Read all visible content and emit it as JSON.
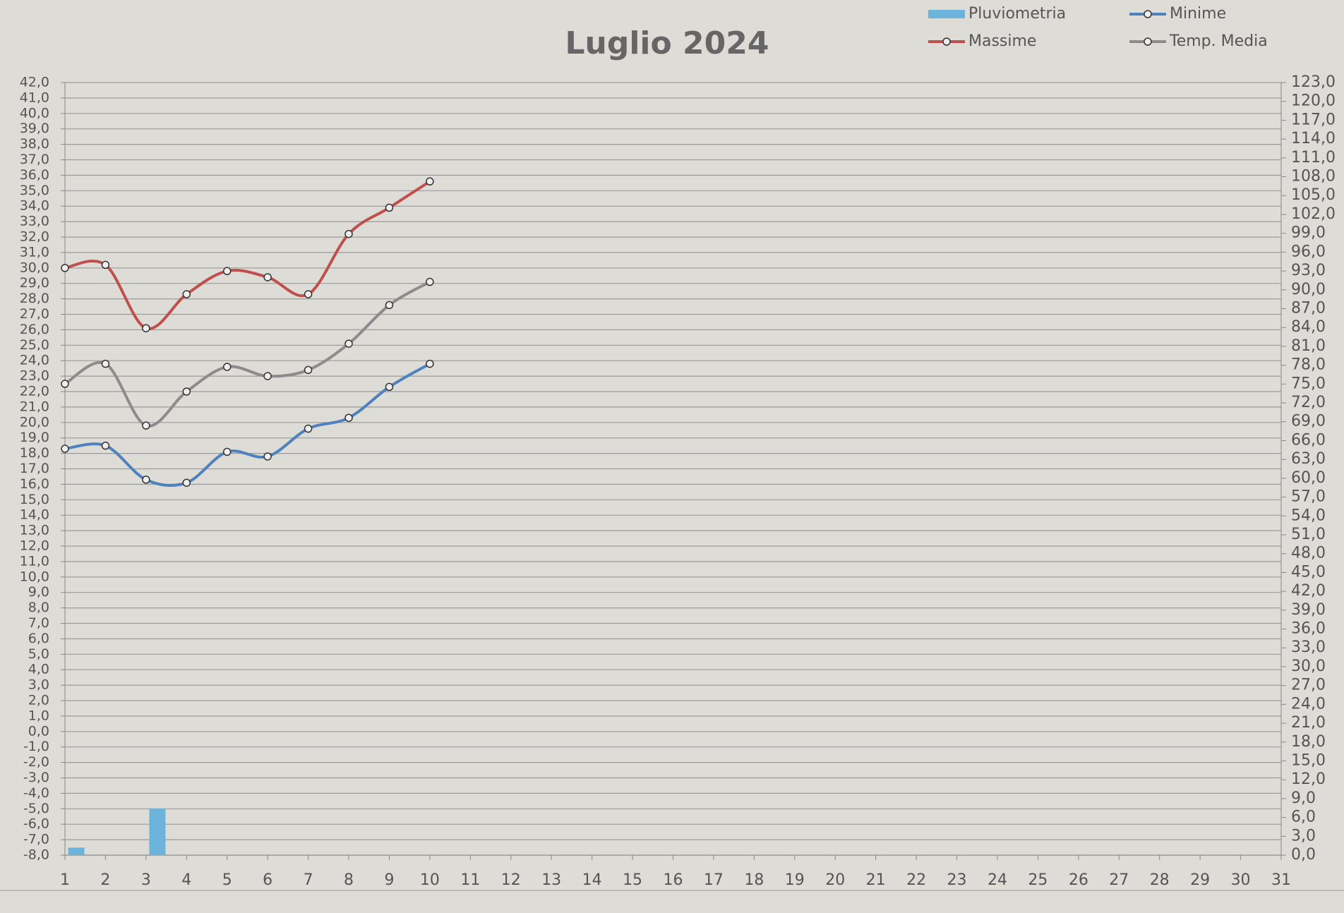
{
  "chart_data": {
    "type": "line",
    "title": "Luglio 2024",
    "categories": [
      1,
      2,
      3,
      4,
      5,
      6,
      7,
      8,
      9,
      10,
      11,
      12,
      13,
      14,
      15,
      16,
      17,
      18,
      19,
      20,
      21,
      22,
      23,
      24,
      25,
      26,
      27,
      28,
      29,
      30,
      31
    ],
    "series": [
      {
        "name": "Pluviometria",
        "color": "#6cb4dc",
        "type": "bar",
        "axis": "y2",
        "values": [
          1.2,
          null,
          7.4,
          null,
          null,
          null,
          null,
          null,
          null,
          null,
          null,
          null,
          null,
          null,
          null,
          null,
          null,
          null,
          null,
          null,
          null,
          null,
          null,
          null,
          null,
          null,
          null,
          null,
          null,
          null,
          null
        ]
      },
      {
        "name": "Minime",
        "color": "#4f81bd",
        "values": [
          18.3,
          18.5,
          16.3,
          16.1,
          18.1,
          17.8,
          19.6,
          20.3,
          22.3,
          23.8,
          null,
          null,
          null,
          null,
          null,
          null,
          null,
          null,
          null,
          null,
          null,
          null,
          null,
          null,
          null,
          null,
          null,
          null,
          null,
          null,
          null
        ]
      },
      {
        "name": "Massime",
        "color": "#c0504d",
        "values": [
          30.0,
          30.2,
          26.1,
          28.3,
          29.8,
          29.4,
          28.3,
          32.2,
          33.9,
          35.6,
          null,
          null,
          null,
          null,
          null,
          null,
          null,
          null,
          null,
          null,
          null,
          null,
          null,
          null,
          null,
          null,
          null,
          null,
          null,
          null,
          null
        ]
      },
      {
        "name": "Temp. Media",
        "color": "#8c8c8c",
        "values": [
          22.5,
          23.8,
          19.8,
          22.0,
          23.6,
          23.0,
          23.4,
          25.1,
          27.6,
          29.1,
          null,
          null,
          null,
          null,
          null,
          null,
          null,
          null,
          null,
          null,
          null,
          null,
          null,
          null,
          null,
          null,
          null,
          null,
          null,
          null,
          null
        ]
      }
    ],
    "ylim": [
      -8,
      42
    ],
    "yticks": [
      {
        "value": -8,
        "label": "-8,0"
      },
      {
        "value": -7,
        "label": "-7,0"
      },
      {
        "value": -6,
        "label": "-6,0"
      },
      {
        "value": -5,
        "label": "-5,0"
      },
      {
        "value": -4,
        "label": "-4,0"
      },
      {
        "value": -3,
        "label": "-3,0"
      },
      {
        "value": -2,
        "label": "-2,0"
      },
      {
        "value": -1,
        "label": "-1,0"
      },
      {
        "value": 0,
        "label": "0,0"
      },
      {
        "value": 1,
        "label": "1,0"
      },
      {
        "value": 2,
        "label": "2,0"
      },
      {
        "value": 3,
        "label": "3,0"
      },
      {
        "value": 4,
        "label": "4,0"
      },
      {
        "value": 5,
        "label": "5,0"
      },
      {
        "value": 6,
        "label": "6,0"
      },
      {
        "value": 7,
        "label": "7,0"
      },
      {
        "value": 8,
        "label": "8,0"
      },
      {
        "value": 9,
        "label": "9,0"
      },
      {
        "value": 10,
        "label": "10,0"
      },
      {
        "value": 11,
        "label": "11,0"
      },
      {
        "value": 12,
        "label": "12,0"
      },
      {
        "value": 13,
        "label": "13,0"
      },
      {
        "value": 14,
        "label": "14,0"
      },
      {
        "value": 15,
        "label": "15,0"
      },
      {
        "value": 16,
        "label": "16,0"
      },
      {
        "value": 17,
        "label": "17,0"
      },
      {
        "value": 18,
        "label": "18,0"
      },
      {
        "value": 19,
        "label": "19,0"
      },
      {
        "value": 20,
        "label": "20,0"
      },
      {
        "value": 21,
        "label": "21,0"
      },
      {
        "value": 22,
        "label": "22,0"
      },
      {
        "value": 23,
        "label": "23,0"
      },
      {
        "value": 24,
        "label": "24,0"
      },
      {
        "value": 25,
        "label": "25,0"
      },
      {
        "value": 26,
        "label": "26,0"
      },
      {
        "value": 27,
        "label": "27,0"
      },
      {
        "value": 28,
        "label": "28,0"
      },
      {
        "value": 29,
        "label": "29,0"
      },
      {
        "value": 30,
        "label": "30,0"
      },
      {
        "value": 31,
        "label": "31,0"
      },
      {
        "value": 32,
        "label": "32,0"
      },
      {
        "value": 33,
        "label": "33,0"
      },
      {
        "value": 34,
        "label": "34,0"
      },
      {
        "value": 35,
        "label": "35,0"
      },
      {
        "value": 36,
        "label": "36,0"
      },
      {
        "value": 37,
        "label": "37,0"
      },
      {
        "value": 38,
        "label": "38,0"
      },
      {
        "value": 39,
        "label": "39,0"
      },
      {
        "value": 40,
        "label": "40,0"
      },
      {
        "value": 41,
        "label": "41,0"
      },
      {
        "value": 42,
        "label": "42,0"
      }
    ],
    "y2lim": [
      0,
      123
    ],
    "y2ticks": [
      {
        "value": 0,
        "label": "0,0"
      },
      {
        "value": 3,
        "label": "3,0"
      },
      {
        "value": 6,
        "label": "6,0"
      },
      {
        "value": 9,
        "label": "9,0"
      },
      {
        "value": 12,
        "label": "12,0"
      },
      {
        "value": 15,
        "label": "15,0"
      },
      {
        "value": 18,
        "label": "18,0"
      },
      {
        "value": 21,
        "label": "21,0"
      },
      {
        "value": 24,
        "label": "24,0"
      },
      {
        "value": 27,
        "label": "27,0"
      },
      {
        "value": 30,
        "label": "30,0"
      },
      {
        "value": 33,
        "label": "33,0"
      },
      {
        "value": 36,
        "label": "36,0"
      },
      {
        "value": 39,
        "label": "39,0"
      },
      {
        "value": 42,
        "label": "42,0"
      },
      {
        "value": 45,
        "label": "45,0"
      },
      {
        "value": 48,
        "label": "48,0"
      },
      {
        "value": 51,
        "label": "51,0"
      },
      {
        "value": 54,
        "label": "54,0"
      },
      {
        "value": 57,
        "label": "57,0"
      },
      {
        "value": 60,
        "label": "60,0"
      },
      {
        "value": 63,
        "label": "63,0"
      },
      {
        "value": 66,
        "label": "66,0"
      },
      {
        "value": 69,
        "label": "69,0"
      },
      {
        "value": 72,
        "label": "72,0"
      },
      {
        "value": 75,
        "label": "75,0"
      },
      {
        "value": 78,
        "label": "78,0"
      },
      {
        "value": 81,
        "label": "81,0"
      },
      {
        "value": 84,
        "label": "84,0"
      },
      {
        "value": 87,
        "label": "87,0"
      },
      {
        "value": 90,
        "label": "90,0"
      },
      {
        "value": 93,
        "label": "93,0"
      },
      {
        "value": 96,
        "label": "96,0"
      },
      {
        "value": 99,
        "label": "99,0"
      },
      {
        "value": 102,
        "label": "102,0"
      },
      {
        "value": 105,
        "label": "105,0"
      },
      {
        "value": 108,
        "label": "108,0"
      },
      {
        "value": 111,
        "label": "111,0"
      },
      {
        "value": 114,
        "label": "114,0"
      },
      {
        "value": 117,
        "label": "117,0"
      },
      {
        "value": 120,
        "label": "120,0"
      },
      {
        "value": 123,
        "label": "123,0"
      }
    ],
    "grid": true,
    "smooth": true,
    "legend": "top-right"
  }
}
